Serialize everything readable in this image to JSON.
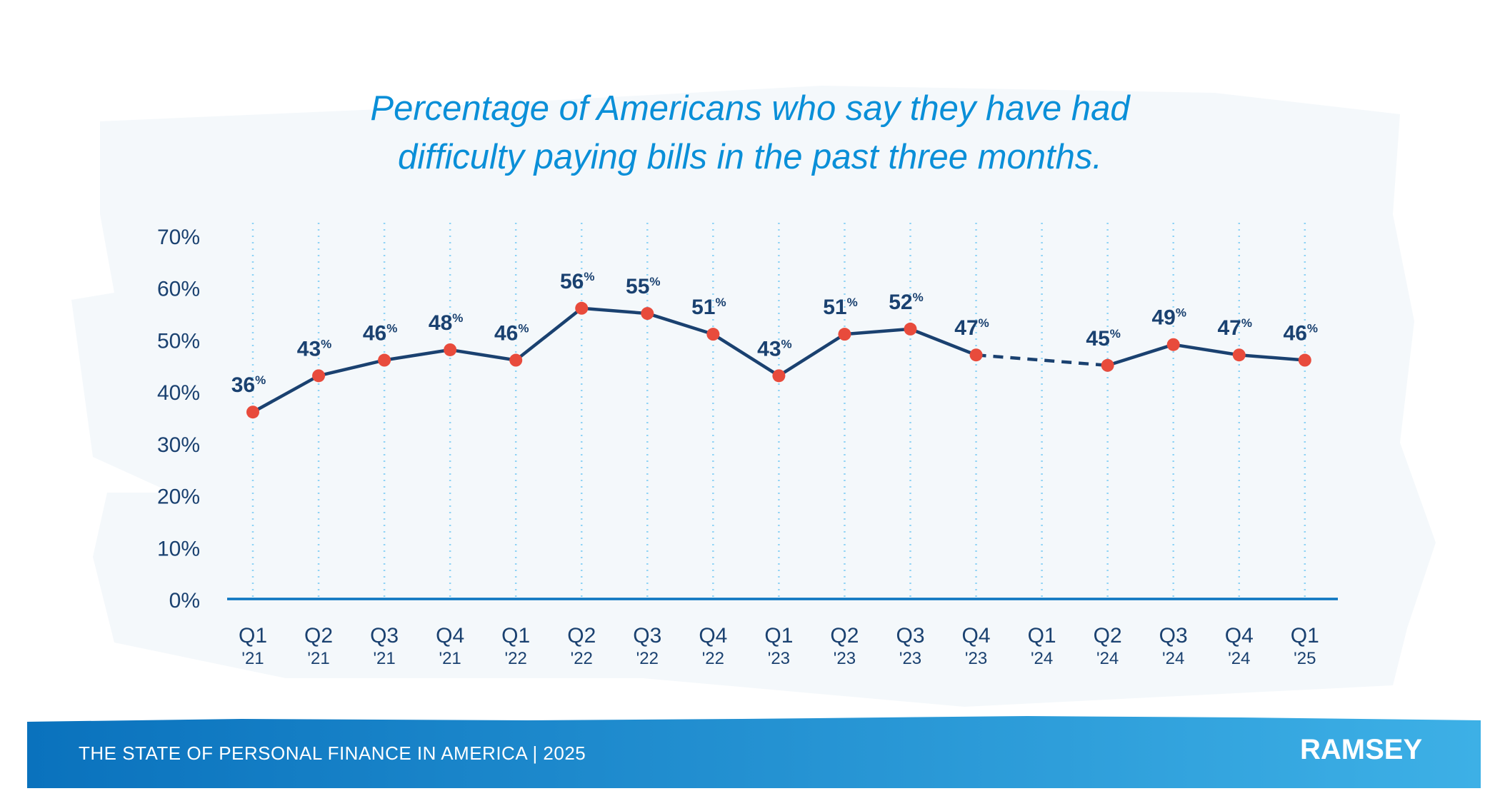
{
  "chart_data": {
    "type": "line",
    "title": "Percentage of Americans who say they have had difficulty paying bills in the past three months.",
    "title_lines": [
      "Percentage of Americans who say they have had",
      "difficulty paying bills in the past three months."
    ],
    "categories": [
      [
        "Q1",
        "'21"
      ],
      [
        "Q2",
        "'21"
      ],
      [
        "Q3",
        "'21"
      ],
      [
        "Q4",
        "'21"
      ],
      [
        "Q1",
        "'22"
      ],
      [
        "Q2",
        "'22"
      ],
      [
        "Q3",
        "'22"
      ],
      [
        "Q4",
        "'22"
      ],
      [
        "Q1",
        "'23"
      ],
      [
        "Q2",
        "'23"
      ],
      [
        "Q3",
        "'23"
      ],
      [
        "Q4",
        "'23"
      ],
      [
        "Q1",
        "'24"
      ],
      [
        "Q2",
        "'24"
      ],
      [
        "Q3",
        "'24"
      ],
      [
        "Q4",
        "'24"
      ],
      [
        "Q1",
        "'25"
      ]
    ],
    "values": [
      36,
      43,
      46,
      48,
      46,
      56,
      55,
      51,
      43,
      51,
      52,
      47,
      null,
      45,
      49,
      47,
      46
    ],
    "gap_style": "dashed",
    "yticks": [
      "0%",
      "10%",
      "20%",
      "30%",
      "40%",
      "50%",
      "60%",
      "70%"
    ],
    "ylim": [
      0,
      70
    ],
    "grid": "vertical dotted lines",
    "colors": {
      "line": "#1a4170",
      "marker": "#e84b3c",
      "title": "#0a8fd8",
      "labels": "#1a4170",
      "grid": "#8fd3f5",
      "axis": "#0a74c0"
    }
  },
  "footer": {
    "text": "THE STATE OF PERSONAL FINANCE IN AMERICA | 2025",
    "logo": "RAMSEY",
    "gradient": [
      "#0a72bd",
      "#3db0e6"
    ]
  }
}
